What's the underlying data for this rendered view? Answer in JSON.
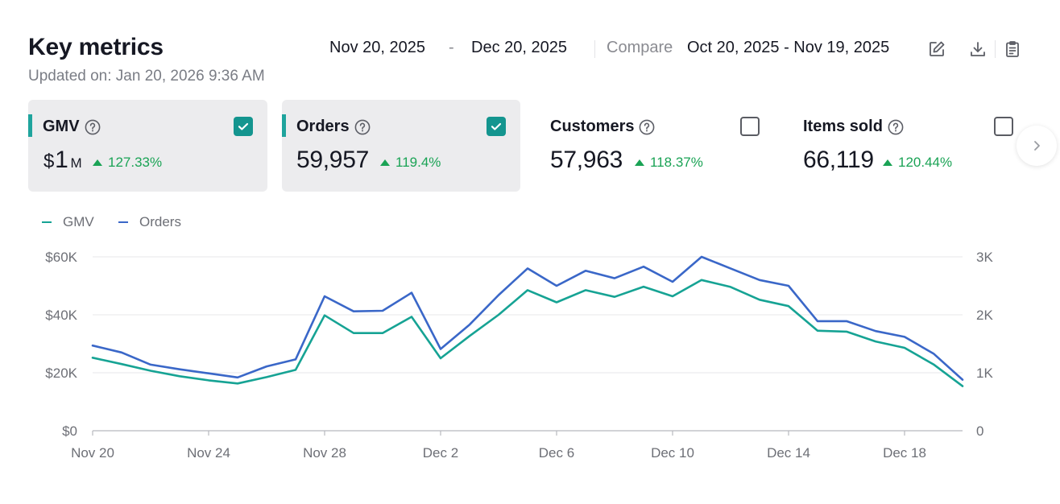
{
  "header": {
    "title": "Key metrics",
    "updated": "Updated on: Jan 20, 2026 9:36 AM",
    "date_start": "Nov 20, 2025",
    "date_separator": "-",
    "date_end": "Dec 20, 2025",
    "compare_label": "Compare",
    "compare_range": "Oct 20, 2025 - Nov 19, 2025",
    "icons": [
      "edit-icon",
      "download-icon",
      "clipboard-icon"
    ]
  },
  "cards": [
    {
      "label": "GMV",
      "currency": "$",
      "value": "1",
      "unit": "M",
      "change": "127.33%",
      "selected": true
    },
    {
      "label": "Orders",
      "value": "59,957",
      "change": "119.4%",
      "selected": true
    },
    {
      "label": "Customers",
      "value": "57,963",
      "change": "118.37%",
      "selected": false
    },
    {
      "label": "Items sold",
      "value": "66,119",
      "change": "120.44%",
      "selected": false
    }
  ],
  "colors": {
    "accent": "#1fa49d",
    "checkbox": "#14958f",
    "positive": "#1aa355",
    "gmv_line": "#16a394",
    "orders_line": "#3a67c8"
  },
  "chart_data": {
    "type": "line",
    "x": [
      "Nov 20",
      "Nov 21",
      "Nov 22",
      "Nov 23",
      "Nov 24",
      "Nov 25",
      "Nov 26",
      "Nov 27",
      "Nov 28",
      "Nov 29",
      "Nov 30",
      "Dec 1",
      "Dec 2",
      "Dec 3",
      "Dec 4",
      "Dec 5",
      "Dec 6",
      "Dec 7",
      "Dec 8",
      "Dec 9",
      "Dec 10",
      "Dec 11",
      "Dec 12",
      "Dec 13",
      "Dec 14",
      "Dec 15",
      "Dec 16",
      "Dec 17",
      "Dec 18",
      "Dec 19",
      "Dec 20"
    ],
    "x_ticks": [
      "Nov 20",
      "Nov 24",
      "Nov 28",
      "Dec 2",
      "Dec 6",
      "Dec 10",
      "Dec 14",
      "Dec 18"
    ],
    "series": [
      {
        "name": "GMV",
        "axis": "left",
        "color": "#16a394",
        "values": [
          25200,
          23000,
          20700,
          18800,
          17400,
          16300,
          18500,
          21000,
          39800,
          33700,
          33700,
          39300,
          25000,
          32700,
          40000,
          48500,
          44300,
          48500,
          46200,
          49700,
          46400,
          52000,
          49600,
          45200,
          43000,
          34500,
          34200,
          30800,
          28600,
          22900,
          15400
        ]
      },
      {
        "name": "Orders",
        "axis": "right",
        "color": "#3a67c8",
        "values": [
          1470,
          1350,
          1140,
          1060,
          990,
          920,
          1110,
          1230,
          2320,
          2060,
          2070,
          2380,
          1410,
          1830,
          2340,
          2800,
          2500,
          2760,
          2630,
          2830,
          2570,
          3000,
          2800,
          2600,
          2500,
          1890,
          1890,
          1720,
          1620,
          1330,
          880
        ]
      }
    ],
    "y_left": {
      "ticks": [
        "$0",
        "$20K",
        "$40K",
        "$60K"
      ],
      "ylim": [
        0,
        60000
      ]
    },
    "y_right": {
      "ticks": [
        "0",
        "1K",
        "2K",
        "3K"
      ],
      "ylim": [
        0,
        3000
      ]
    },
    "legend": [
      "GMV",
      "Orders"
    ],
    "legend_position": "top-left",
    "grid": true
  }
}
